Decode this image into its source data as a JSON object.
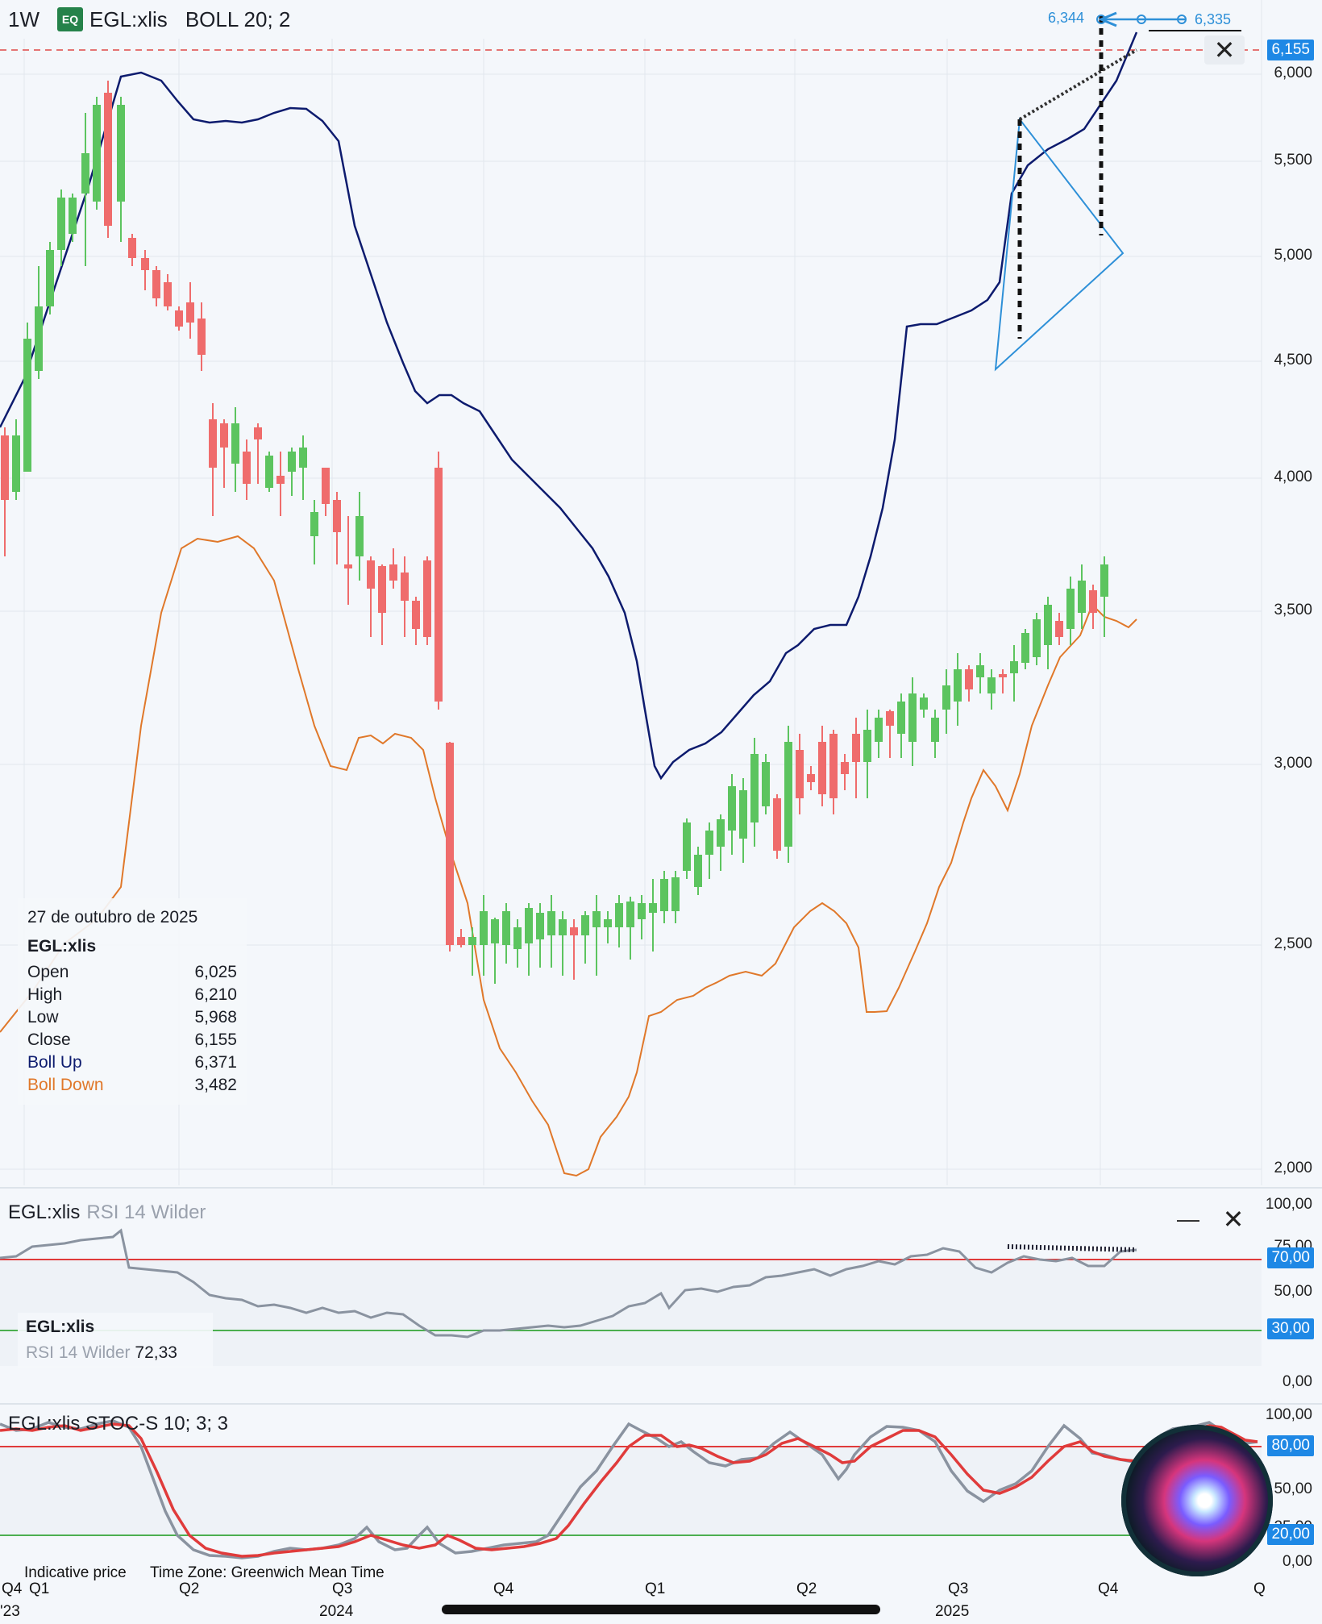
{
  "header": {
    "timeframe": "1W",
    "badge": "EQ",
    "symbol": "EGL:xlis",
    "indicator": "BOLL 20; 2"
  },
  "main_axis": [
    "6,000",
    "5,500",
    "5,000",
    "4,500",
    "4,000",
    "3,500",
    "3,000",
    "2,500",
    "2,000"
  ],
  "last_price": "6,155",
  "tool_labels": {
    "left": "6,344",
    "right": "6,335"
  },
  "info": {
    "date": "27 de outubro de 2025",
    "symbol": "EGL:xlis",
    "rows": [
      {
        "label": "Open",
        "value": "6,025",
        "color": "#1b1e26"
      },
      {
        "label": "High",
        "value": "6,210",
        "color": "#1b1e26"
      },
      {
        "label": "Low",
        "value": "5,968",
        "color": "#1b1e26"
      },
      {
        "label": "Close",
        "value": "6,155",
        "color": "#1b1e26"
      },
      {
        "label": "Boll Up",
        "value": "6,371",
        "color": "#0d1b6e"
      },
      {
        "label": "Boll Down",
        "value": "3,482",
        "color": "#e0782a"
      }
    ]
  },
  "rsi": {
    "title": "EGL:xlis",
    "indicator": "RSI 14 Wilder",
    "axis": [
      "100,00",
      "75,00",
      "50,00",
      "0,00"
    ],
    "upper_tag": "70,00",
    "lower_tag": "30,00",
    "legend_symbol": "EGL:xlis",
    "legend_indicator": "RSI 14 Wilder",
    "legend_value": "72,33"
  },
  "stoch": {
    "title": "EGL:xlis",
    "indicator": "STOC-S 10; 3; 3",
    "axis": [
      "100,00",
      "50,00",
      "25,00",
      "0,00"
    ],
    "upper_tag": "80,00",
    "lower_tag": "20,00"
  },
  "footer": {
    "price_note": "Indicative price",
    "timezone": "Time Zone: Greenwich Mean Time"
  },
  "time_axis": [
    {
      "q": "Q4",
      "y": "'23"
    },
    {
      "q": "Q1",
      "y": ""
    },
    {
      "q": "Q2",
      "y": ""
    },
    {
      "q": "Q3",
      "y": "2024"
    },
    {
      "q": "Q4",
      "y": ""
    },
    {
      "q": "Q1",
      "y": ""
    },
    {
      "q": "Q2",
      "y": ""
    },
    {
      "q": "Q3",
      "y": "2025"
    },
    {
      "q": "Q4",
      "y": ""
    },
    {
      "q": "Q",
      "y": ""
    }
  ],
  "colors": {
    "up": "#5cc45f",
    "down": "#ef6c6c",
    "boll_up": "#0d1b6e",
    "boll_down": "#e0782a",
    "rsi_line": "#8a93a0",
    "stoch_k": "#8a93a0",
    "stoch_d": "#e03b3b",
    "level_red": "#e03b3b",
    "level_green": "#4caf50",
    "accent": "#1e88e5"
  },
  "icons": [
    "close-icon",
    "minimize-icon",
    "siri-icon"
  ]
}
